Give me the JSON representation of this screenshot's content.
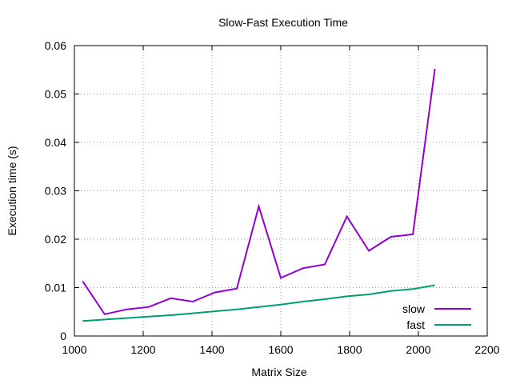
{
  "chart_data": {
    "type": "line",
    "title": "Slow-Fast Execution Time",
    "xlabel": "Matrix Size",
    "ylabel": "Execution time (s)",
    "xlim": [
      1000,
      2200
    ],
    "ylim": [
      0,
      0.06
    ],
    "x_ticks": [
      "1000",
      "1200",
      "1400",
      "1600",
      "1800",
      "2000",
      "2200"
    ],
    "y_ticks": [
      "0",
      "0.01",
      "0.02",
      "0.03",
      "0.04",
      "0.05",
      "0.06"
    ],
    "grid": true,
    "legend_position": "bottom-right",
    "x": [
      1024,
      1088,
      1152,
      1216,
      1280,
      1344,
      1408,
      1472,
      1536,
      1600,
      1664,
      1728,
      1792,
      1856,
      1920,
      1984,
      2048
    ],
    "series": [
      {
        "name": "slow",
        "color": "#9400d3",
        "values": [
          0.0113,
          0.0045,
          0.0055,
          0.006,
          0.0078,
          0.0071,
          0.009,
          0.0098,
          0.0268,
          0.012,
          0.014,
          0.0148,
          0.0247,
          0.0176,
          0.0205,
          0.021,
          0.0552
        ]
      },
      {
        "name": "fast",
        "color": "#009e73",
        "values": [
          0.0031,
          0.0034,
          0.0037,
          0.004,
          0.0043,
          0.0047,
          0.0051,
          0.0055,
          0.006,
          0.0065,
          0.0071,
          0.0076,
          0.0082,
          0.0086,
          0.0093,
          0.0097,
          0.0105
        ]
      }
    ]
  }
}
